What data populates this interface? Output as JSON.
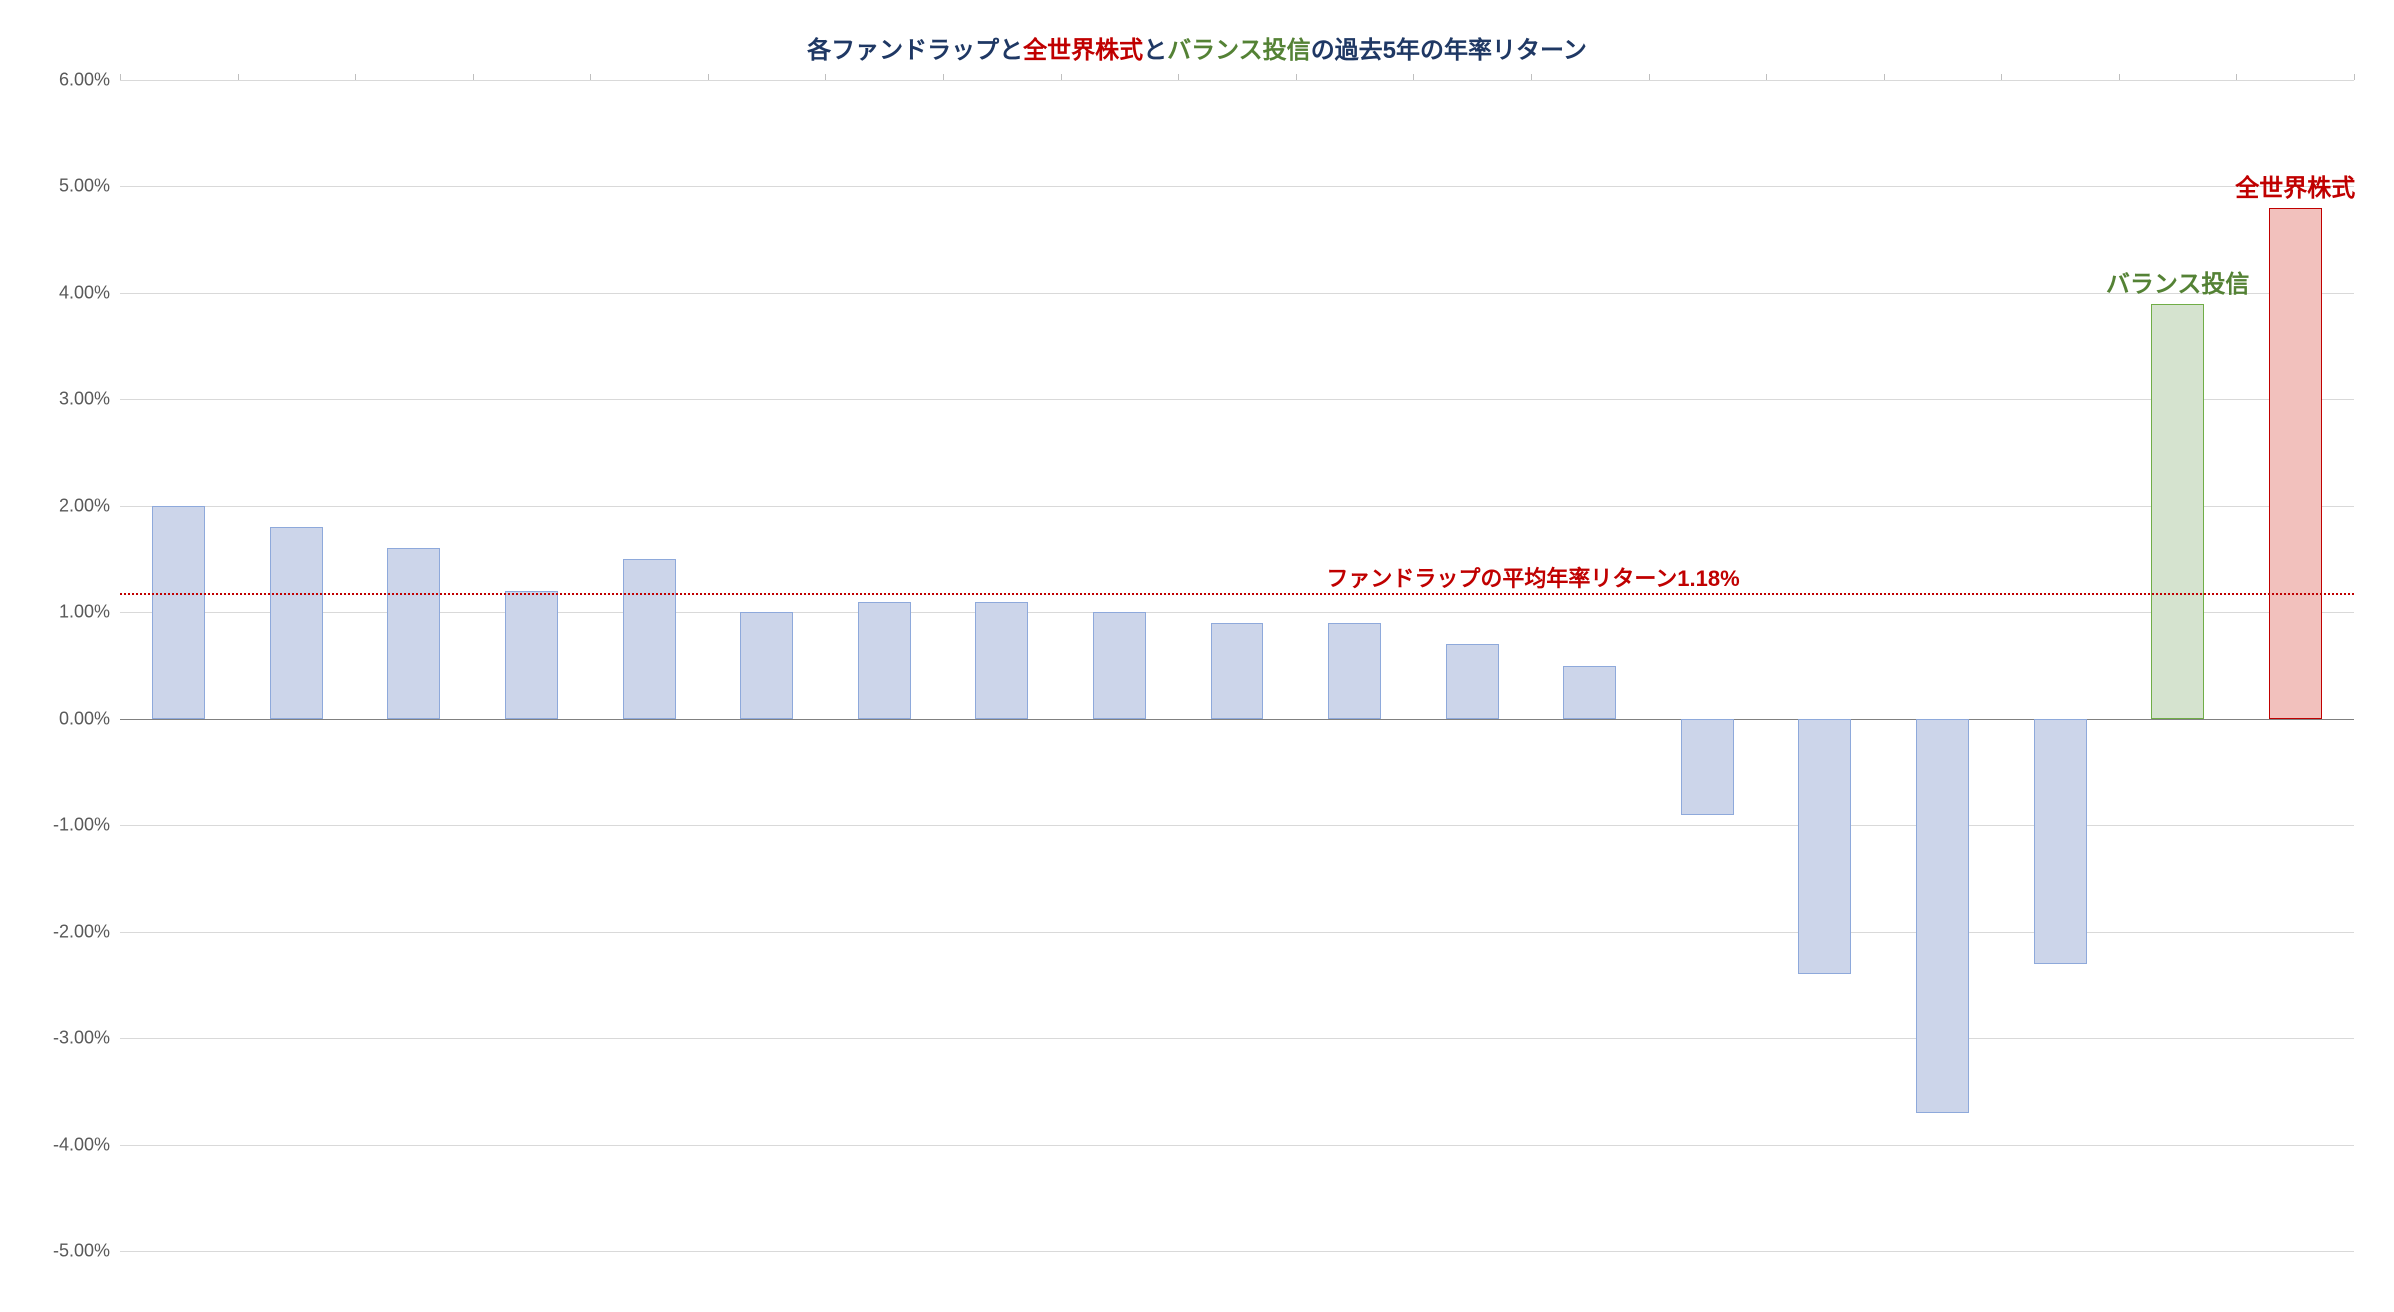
{
  "chart": {
    "type": "bar",
    "title_parts": {
      "p1": "各ファンドラップ",
      "p2": "と",
      "p3": "全世界株式",
      "p4": "と",
      "p5": "バランス投信",
      "p6": "の過去5年の年率リターン"
    },
    "title_colors": {
      "fundwrap": "#1f3864",
      "world": "#c00000",
      "balance": "#548235",
      "normal": "#1f3864"
    },
    "ylim": [
      -5,
      6
    ],
    "ytick_step": 1,
    "y_axis_labels": [
      "6.00%",
      "5.00%",
      "4.00%",
      "3.00%",
      "2.00%",
      "1.00%",
      "0.00%",
      "-1.00%",
      "-2.00%",
      "-3.00%",
      "-4.00%",
      "-5.00%"
    ],
    "y_axis_values": [
      6,
      5,
      4,
      3,
      2,
      1,
      0,
      -1,
      -2,
      -3,
      -4,
      -5
    ],
    "background_color": "#ffffff",
    "grid_color": "#d9d9d9",
    "zero_line_color": "#808080",
    "axis_label_color": "#595959",
    "axis_label_fontsize": 18,
    "reference_line": {
      "value": 1.18,
      "label": "ファンドラップの平均年率リターン1.18%",
      "color": "#c00000",
      "style": "dotted",
      "label_fontsize": 22
    },
    "bar_width_ratio": 0.45,
    "series": [
      {
        "value": 2.0,
        "fill": "#ccd5ea",
        "border": "#8ea9db",
        "group": "fundwrap"
      },
      {
        "value": 1.8,
        "fill": "#ccd5ea",
        "border": "#8ea9db",
        "group": "fundwrap"
      },
      {
        "value": 1.6,
        "fill": "#ccd5ea",
        "border": "#8ea9db",
        "group": "fundwrap"
      },
      {
        "value": 1.2,
        "fill": "#ccd5ea",
        "border": "#8ea9db",
        "group": "fundwrap"
      },
      {
        "value": 1.5,
        "fill": "#ccd5ea",
        "border": "#8ea9db",
        "group": "fundwrap"
      },
      {
        "value": 1.0,
        "fill": "#ccd5ea",
        "border": "#8ea9db",
        "group": "fundwrap"
      },
      {
        "value": 1.1,
        "fill": "#ccd5ea",
        "border": "#8ea9db",
        "group": "fundwrap"
      },
      {
        "value": 1.1,
        "fill": "#ccd5ea",
        "border": "#8ea9db",
        "group": "fundwrap"
      },
      {
        "value": 1.0,
        "fill": "#ccd5ea",
        "border": "#8ea9db",
        "group": "fundwrap"
      },
      {
        "value": 0.9,
        "fill": "#ccd5ea",
        "border": "#8ea9db",
        "group": "fundwrap"
      },
      {
        "value": 0.9,
        "fill": "#ccd5ea",
        "border": "#8ea9db",
        "group": "fundwrap"
      },
      {
        "value": 0.7,
        "fill": "#ccd5ea",
        "border": "#8ea9db",
        "group": "fundwrap"
      },
      {
        "value": 0.5,
        "fill": "#ccd5ea",
        "border": "#8ea9db",
        "group": "fundwrap"
      },
      {
        "value": -0.9,
        "fill": "#ccd5ea",
        "border": "#8ea9db",
        "group": "fundwrap"
      },
      {
        "value": -2.4,
        "fill": "#ccd5ea",
        "border": "#8ea9db",
        "group": "fundwrap"
      },
      {
        "value": -3.7,
        "fill": "#ccd5ea",
        "border": "#8ea9db",
        "group": "fundwrap"
      },
      {
        "value": -2.3,
        "fill": "#ccd5ea",
        "border": "#8ea9db",
        "group": "fundwrap"
      },
      {
        "value": 3.9,
        "fill": "#d5e3cf",
        "border": "#70ad47",
        "group": "balance",
        "label": "バランス投信",
        "label_color": "#548235"
      },
      {
        "value": 4.8,
        "fill": "#f2c1bd",
        "border": "#c00000",
        "group": "world",
        "label": "全世界株式",
        "label_color": "#c00000"
      }
    ]
  }
}
